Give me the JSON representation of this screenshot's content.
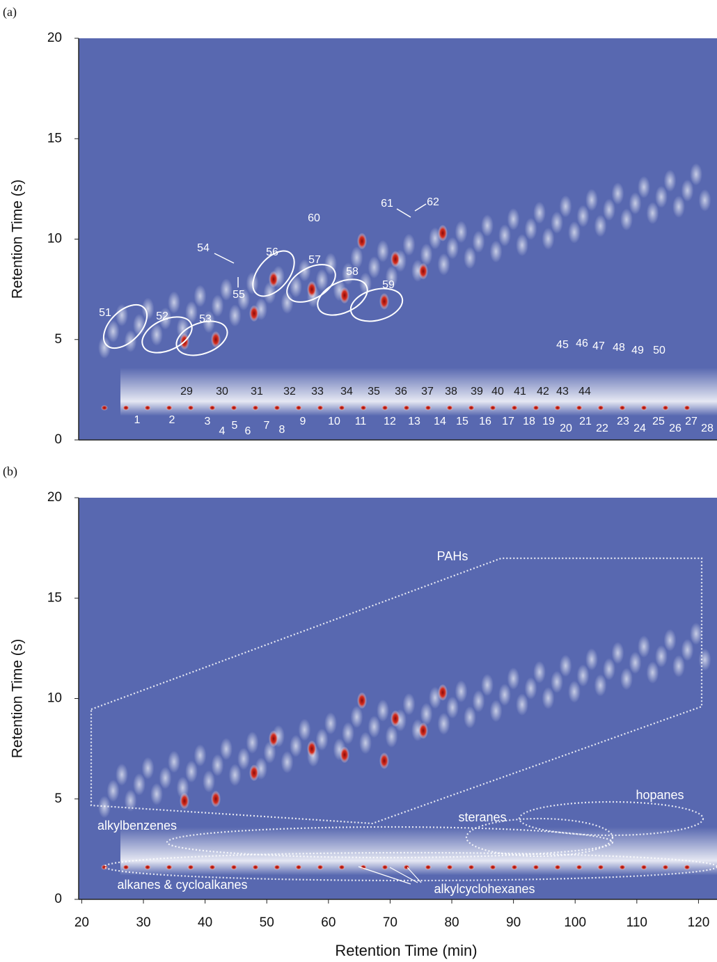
{
  "chart_data": [
    {
      "type": "heatmap",
      "panel_label": "(a)",
      "y_label": "Retention Time (s)",
      "xlim": [
        19.5,
        123
      ],
      "ylim": [
        0,
        20
      ],
      "yticks": [
        0,
        5,
        10,
        15,
        20
      ],
      "annotations": [
        "1",
        "2",
        "3",
        "4",
        "5",
        "6",
        "7",
        "8",
        "9",
        "10",
        "11",
        "12",
        "13",
        "14",
        "15",
        "16",
        "17",
        "18",
        "19",
        "20",
        "21",
        "22",
        "23",
        "24",
        "25",
        "26",
        "27",
        "28",
        "29",
        "30",
        "31",
        "32",
        "33",
        "34",
        "35",
        "36",
        "37",
        "38",
        "39",
        "40",
        "41",
        "42",
        "43",
        "44",
        "45",
        "46",
        "47",
        "48",
        "49",
        "50",
        "51",
        "52",
        "53",
        "54",
        "55",
        "56",
        "57",
        "58",
        "59",
        "60",
        "61",
        "62"
      ]
    },
    {
      "type": "heatmap",
      "panel_label": "(b)",
      "y_label": "Retention Time (s)",
      "x_label": "Retention Time (min)",
      "xlim": [
        19.5,
        123
      ],
      "ylim": [
        0,
        20
      ],
      "yticks": [
        0,
        5,
        10,
        15,
        20
      ],
      "xticks": [
        20,
        30,
        40,
        50,
        60,
        70,
        80,
        90,
        100,
        110,
        120
      ],
      "annotations": [
        "PAHs",
        "alkylbenzenes",
        "steranes",
        "hopanes",
        "alkanes & cycloalkanes",
        "alkylcyclohexanes"
      ]
    }
  ]
}
